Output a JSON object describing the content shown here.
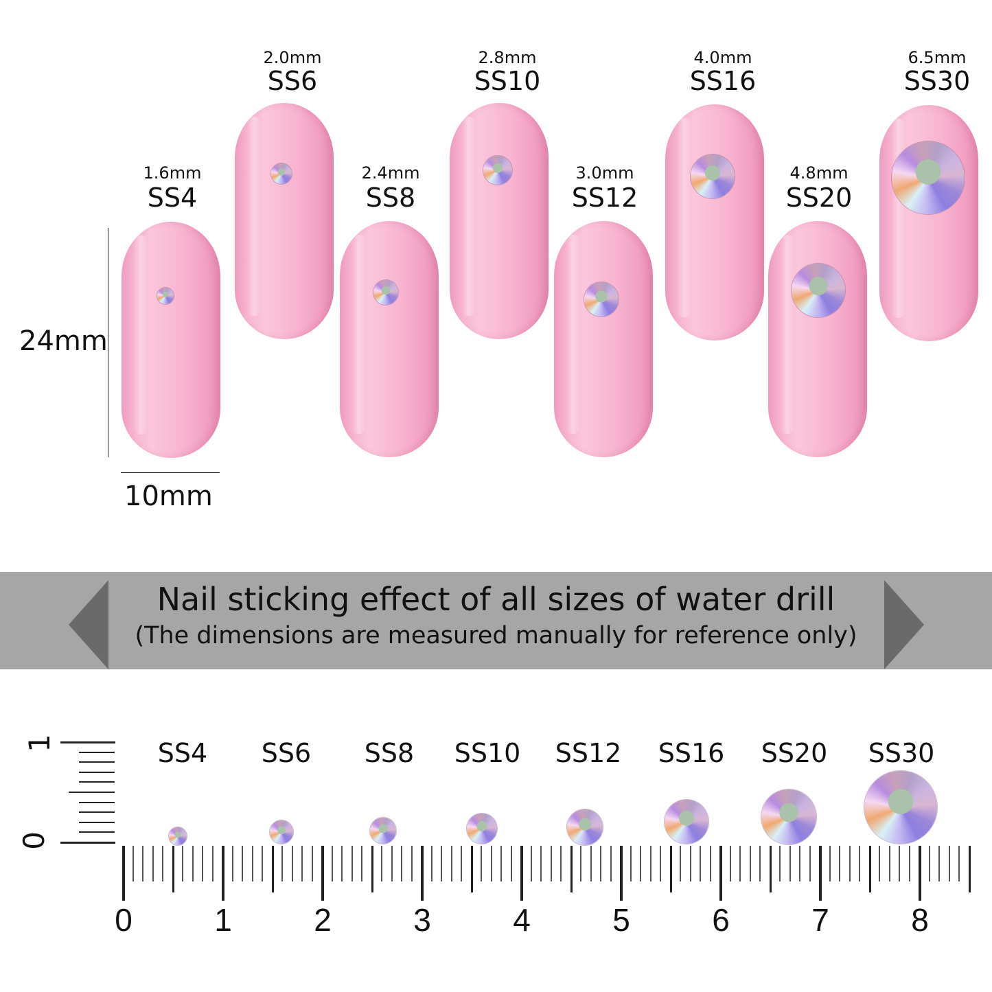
{
  "nails": [
    {
      "size_mm": "1.6mm",
      "label": "SS4"
    },
    {
      "size_mm": "2.0mm",
      "label": "SS6"
    },
    {
      "size_mm": "2.4mm",
      "label": "SS8"
    },
    {
      "size_mm": "2.8mm",
      "label": "SS10"
    },
    {
      "size_mm": "3.0mm",
      "label": "SS12"
    },
    {
      "size_mm": "4.0mm",
      "label": "SS16"
    },
    {
      "size_mm": "4.8mm",
      "label": "SS20"
    },
    {
      "size_mm": "6.5mm",
      "label": "SS30"
    }
  ],
  "dimensions": {
    "height": "24mm",
    "width": "10mm"
  },
  "banner": {
    "title": "Nail sticking effect of all sizes of water drill",
    "subtitle": "(The dimensions are measured manually for reference only)"
  },
  "ruler": {
    "labels": [
      "SS4",
      "SS6",
      "SS8",
      "SS10",
      "SS12",
      "SS16",
      "SS20",
      "SS30"
    ],
    "ticks": [
      "0",
      "1",
      "2",
      "3",
      "4",
      "5",
      "6",
      "7",
      "8"
    ],
    "vertical_ticks": [
      "0",
      "1"
    ]
  },
  "colors": {
    "nail": "#f7b6d1",
    "banner": "#a6a6a6"
  }
}
